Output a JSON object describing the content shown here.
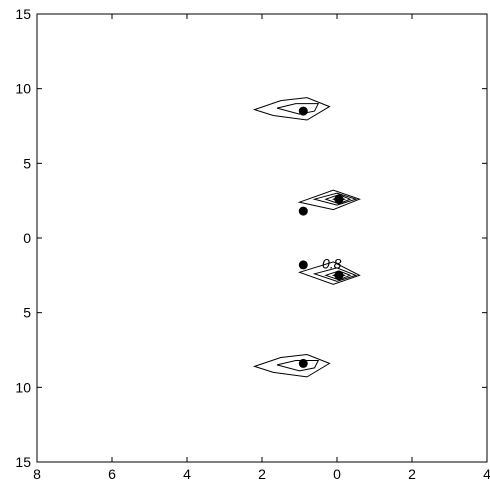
{
  "chart_data": {
    "type": "contour",
    "title": "",
    "xlabel": "",
    "ylabel": "",
    "xlim": [
      -8,
      4
    ],
    "ylim": [
      -15,
      15
    ],
    "x_ticks": [
      -8,
      -6,
      -4,
      -2,
      0,
      2,
      4
    ],
    "x_tick_labels": [
      "8",
      "6",
      "4",
      "2",
      "0",
      "2",
      "4"
    ],
    "y_ticks": [
      15,
      10,
      5,
      0,
      -5,
      -10,
      -15
    ],
    "y_tick_labels": [
      "15",
      "10",
      "5",
      "0",
      "5",
      "10",
      "15"
    ],
    "grid": false,
    "points": [
      {
        "x": -0.9,
        "y": 8.5
      },
      {
        "x": -0.9,
        "y": 1.8
      },
      {
        "x": -0.9,
        "y": -1.8
      },
      {
        "x": -0.9,
        "y": -8.4
      },
      {
        "x": 0.05,
        "y": 2.6
      },
      {
        "x": 0.05,
        "y": -2.5
      }
    ],
    "contours": [
      {
        "center": [
          -0.9,
          8.6
        ],
        "loops": [
          [
            [
              -2.2,
              8.6
            ],
            [
              -1.5,
              9.2
            ],
            [
              -0.8,
              9.4
            ],
            [
              -0.2,
              8.8
            ],
            [
              -0.8,
              7.9
            ],
            [
              -1.7,
              8.2
            ]
          ],
          [
            [
              -1.6,
              8.7
            ],
            [
              -1.1,
              9.0
            ],
            [
              -0.5,
              9.0
            ],
            [
              -0.6,
              8.5
            ],
            [
              -1.0,
              8.3
            ]
          ]
        ]
      },
      {
        "center": [
          0.05,
          2.6
        ],
        "loops": [
          [
            [
              -1.0,
              2.4
            ],
            [
              -0.1,
              3.2
            ],
            [
              0.6,
              2.6
            ],
            [
              -0.1,
              1.9
            ]
          ],
          [
            [
              -0.6,
              2.6
            ],
            [
              0.0,
              3.0
            ],
            [
              0.5,
              2.6
            ],
            [
              0.0,
              2.2
            ]
          ],
          [
            [
              -0.3,
              2.6
            ],
            [
              0.05,
              2.9
            ],
            [
              0.35,
              2.6
            ],
            [
              0.05,
              2.3
            ]
          ],
          [
            [
              -0.1,
              2.6
            ],
            [
              0.05,
              2.75
            ],
            [
              0.2,
              2.6
            ],
            [
              0.05,
              2.45
            ]
          ]
        ]
      },
      {
        "center": [
          0.05,
          -2.5
        ],
        "loops": [
          [
            [
              -1.0,
              -2.3
            ],
            [
              -0.1,
              -1.6
            ],
            [
              0.6,
              -2.5
            ],
            [
              -0.1,
              -3.1
            ]
          ],
          [
            [
              -0.6,
              -2.4
            ],
            [
              0.0,
              -2.0
            ],
            [
              0.5,
              -2.5
            ],
            [
              0.0,
              -2.9
            ]
          ],
          [
            [
              -0.3,
              -2.5
            ],
            [
              0.05,
              -2.2
            ],
            [
              0.35,
              -2.5
            ],
            [
              0.05,
              -2.8
            ]
          ],
          [
            [
              -0.1,
              -2.5
            ],
            [
              0.05,
              -2.35
            ],
            [
              0.2,
              -2.5
            ],
            [
              0.05,
              -2.65
            ]
          ]
        ]
      },
      {
        "center": [
          -0.9,
          -8.5
        ],
        "loops": [
          [
            [
              -2.2,
              -8.6
            ],
            [
              -1.5,
              -8.0
            ],
            [
              -0.8,
              -7.8
            ],
            [
              -0.2,
              -8.4
            ],
            [
              -0.8,
              -9.3
            ],
            [
              -1.7,
              -9.0
            ]
          ],
          [
            [
              -1.6,
              -8.5
            ],
            [
              -1.1,
              -8.2
            ],
            [
              -0.5,
              -8.2
            ],
            [
              -0.6,
              -8.7
            ],
            [
              -1.0,
              -8.9
            ]
          ]
        ]
      }
    ],
    "annotations": [
      {
        "text": "0.8",
        "x": -0.4,
        "y": -1.7
      }
    ]
  }
}
